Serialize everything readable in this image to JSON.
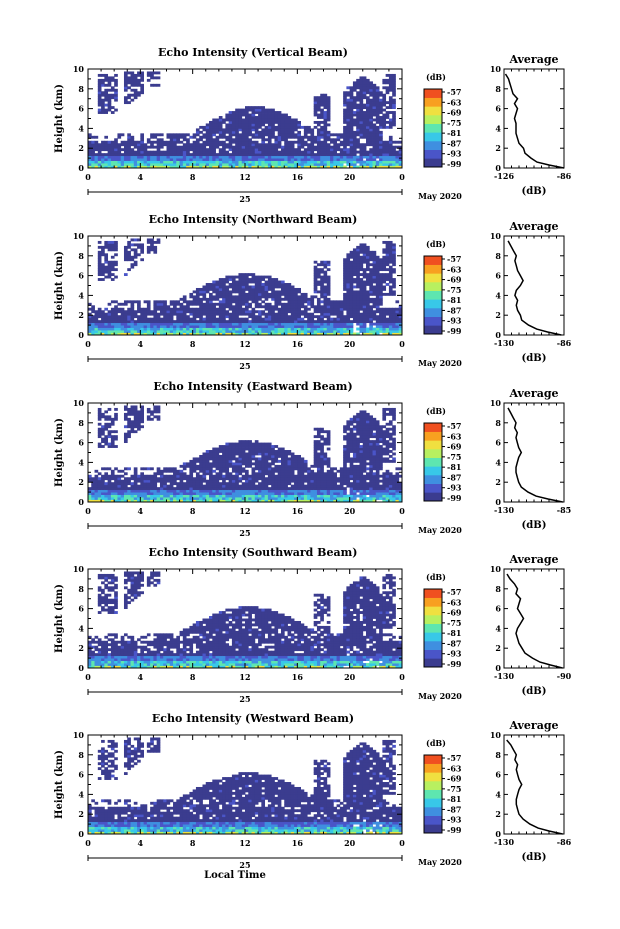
{
  "figure": {
    "date_label": "May 2020",
    "day_label": "25",
    "x_axis_label": "Local Time",
    "y_axis_label": "Height (km)",
    "colorbar_unit": "(dB)",
    "colorbar_ticks": [
      "-57",
      "-63",
      "-69",
      "-75",
      "-81",
      "-87",
      "-93",
      "-99"
    ],
    "colormap": [
      "#3b3c8f",
      "#4a55c8",
      "#3f8fe0",
      "#38c8e8",
      "#5ee6b0",
      "#b8f060",
      "#f0e040",
      "#f8a020",
      "#f05020"
    ],
    "average_title": "Average",
    "average_xlabel": "(dB)"
  },
  "chart_data": [
    {
      "type": "heatmap",
      "title": "Echo Intensity (Vertical Beam)",
      "xlabel": "",
      "ylabel": "Height (km)",
      "x_ticks": [
        "0",
        "4",
        "8",
        "12",
        "16",
        "20",
        "0"
      ],
      "y_ticks": [
        "0",
        "2",
        "4",
        "6",
        "8",
        "10"
      ],
      "xlim": [
        0,
        24
      ],
      "ylim": [
        0,
        10
      ],
      "beam": "vertical",
      "profile": {
        "type": "line",
        "xlabel": "(dB)",
        "xlim": [
          -126,
          -86
        ],
        "x_ticks": [
          "-126",
          "-86"
        ],
        "height": [
          0,
          0.3,
          0.6,
          1,
          1.5,
          2,
          2.5,
          3,
          3.5,
          4,
          4.5,
          5,
          5.5,
          6,
          6.5,
          7,
          7.5,
          8,
          8.5,
          9,
          9.5
        ],
        "db": [
          -86,
          -96,
          -104,
          -108,
          -112,
          -113,
          -116,
          -117,
          -118,
          -118,
          -118,
          -119,
          -118,
          -117,
          -119,
          -117,
          -120,
          -121,
          -122,
          -123,
          -125
        ]
      }
    },
    {
      "type": "heatmap",
      "title": "Echo Intensity (Northward Beam)",
      "xlabel": "",
      "ylabel": "Height (km)",
      "x_ticks": [
        "0",
        "4",
        "8",
        "12",
        "16",
        "20",
        "0"
      ],
      "y_ticks": [
        "0",
        "2",
        "4",
        "6",
        "8",
        "10"
      ],
      "xlim": [
        0,
        24
      ],
      "ylim": [
        0,
        10
      ],
      "beam": "north",
      "profile": {
        "type": "line",
        "xlabel": "(dB)",
        "xlim": [
          -130,
          -86
        ],
        "x_ticks": [
          "-130",
          "-86"
        ],
        "height": [
          0,
          0.3,
          0.6,
          1,
          1.5,
          2,
          2.5,
          3,
          3.5,
          4,
          4.5,
          5,
          5.5,
          6,
          6.5,
          7,
          7.5,
          8,
          8.5,
          9,
          9.5
        ],
        "db": [
          -88,
          -98,
          -106,
          -112,
          -117,
          -118,
          -120,
          -121,
          -120,
          -122,
          -121,
          -118,
          -116,
          -118,
          -120,
          -121,
          -122,
          -121,
          -123,
          -125,
          -127
        ]
      }
    },
    {
      "type": "heatmap",
      "title": "Echo Intensity (Eastward Beam)",
      "xlabel": "",
      "ylabel": "Height (km)",
      "x_ticks": [
        "0",
        "4",
        "8",
        "12",
        "16",
        "20",
        "0"
      ],
      "y_ticks": [
        "0",
        "2",
        "4",
        "6",
        "8",
        "10"
      ],
      "xlim": [
        0,
        24
      ],
      "ylim": [
        0,
        10
      ],
      "beam": "east",
      "profile": {
        "type": "line",
        "xlabel": "(dB)",
        "xlim": [
          -130,
          -85
        ],
        "x_ticks": [
          "-130",
          "-85"
        ],
        "height": [
          0,
          0.3,
          0.6,
          1,
          1.5,
          2,
          2.5,
          3,
          3.5,
          4,
          4.5,
          5,
          5.5,
          6,
          6.5,
          7,
          7.5,
          8,
          8.5,
          9,
          9.5
        ],
        "db": [
          -86,
          -97,
          -106,
          -112,
          -117,
          -119,
          -120,
          -121,
          -121,
          -120,
          -119,
          -117,
          -119,
          -120,
          -121,
          -120,
          -122,
          -121,
          -123,
          -125,
          -127
        ]
      }
    },
    {
      "type": "heatmap",
      "title": "Echo Intensity (Southward Beam)",
      "xlabel": "",
      "ylabel": "Height (km)",
      "x_ticks": [
        "0",
        "4",
        "8",
        "12",
        "16",
        "20",
        "0"
      ],
      "y_ticks": [
        "0",
        "2",
        "4",
        "6",
        "8",
        "10"
      ],
      "xlim": [
        0,
        24
      ],
      "ylim": [
        0,
        10
      ],
      "beam": "south",
      "profile": {
        "type": "line",
        "xlabel": "(dB)",
        "xlim": [
          -130,
          -90
        ],
        "x_ticks": [
          "-130",
          "-90"
        ],
        "height": [
          0,
          0.3,
          0.6,
          1,
          1.5,
          2,
          2.5,
          3,
          3.5,
          4,
          4.5,
          5,
          5.5,
          6,
          6.5,
          7,
          7.5,
          8,
          8.5,
          9,
          9.5
        ],
        "db": [
          -91,
          -99,
          -106,
          -111,
          -116,
          -118,
          -120,
          -121,
          -122,
          -121,
          -119,
          -117,
          -119,
          -121,
          -120,
          -119,
          -122,
          -121,
          -123,
          -126,
          -128
        ]
      }
    },
    {
      "type": "heatmap",
      "title": "Echo Intensity (Westward Beam)",
      "xlabel": "Local Time",
      "ylabel": "Height (km)",
      "x_ticks": [
        "0",
        "4",
        "8",
        "12",
        "16",
        "20",
        "0"
      ],
      "y_ticks": [
        "0",
        "2",
        "4",
        "6",
        "8",
        "10"
      ],
      "xlim": [
        0,
        24
      ],
      "ylim": [
        0,
        10
      ],
      "beam": "west",
      "profile": {
        "type": "line",
        "xlabel": "(dB)",
        "xlim": [
          -130,
          -86
        ],
        "x_ticks": [
          "-130",
          "-86"
        ],
        "height": [
          0,
          0.3,
          0.6,
          1,
          1.5,
          2,
          2.5,
          3,
          3.5,
          4,
          4.5,
          5,
          5.5,
          6,
          6.5,
          7,
          7.5,
          8,
          8.5,
          9,
          9.5
        ],
        "db": [
          -87,
          -97,
          -105,
          -111,
          -116,
          -119,
          -120,
          -121,
          -121,
          -120,
          -119,
          -117,
          -119,
          -120,
          -121,
          -120,
          -122,
          -121,
          -123,
          -125,
          -128
        ]
      }
    }
  ]
}
